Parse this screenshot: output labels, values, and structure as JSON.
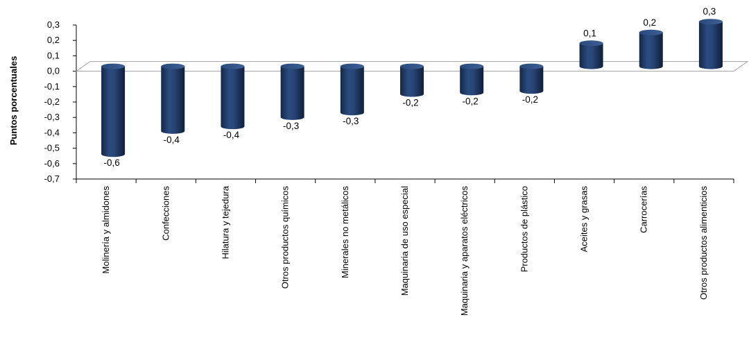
{
  "chart_data": {
    "type": "bar",
    "ylabel": "Puntos porcentuales",
    "ylim": [
      -0.7,
      0.3
    ],
    "yticks": [
      "0,3",
      "0,2",
      "0,1",
      "0,0",
      "-0,1",
      "-0,2",
      "-0,3",
      "-0,4",
      "-0,5",
      "-0,6",
      "-0,7"
    ],
    "categories": [
      "Molinería y almidones",
      "Confecciones",
      "Hilatura y tejedura",
      "Otros productos químicos",
      "Minerales no metálicos",
      "Maquinaria de uso especial",
      "Maquinaria y aparatos eléctricos",
      "Productos de plástico",
      "Aceites y grasas",
      "Carrocerías",
      "Otros productos alimenticios"
    ],
    "values": [
      -0.57,
      -0.42,
      -0.39,
      -0.33,
      -0.3,
      -0.18,
      -0.17,
      -0.16,
      0.15,
      0.22,
      0.29
    ],
    "data_labels": [
      "-0,6",
      "-0,4",
      "-0,4",
      "-0,3",
      "-0,3",
      "-0,2",
      "-0,2",
      "-0,2",
      "0,1",
      "0,2",
      "0,3"
    ],
    "bar_color": "#1f3864",
    "grid": false
  }
}
